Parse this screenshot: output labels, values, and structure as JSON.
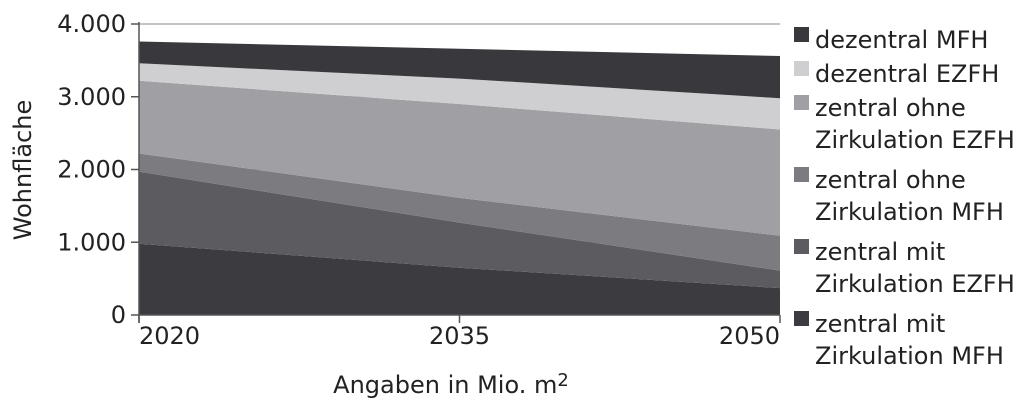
{
  "chart_data": {
    "type": "area",
    "stacked": true,
    "x": [
      "2020",
      "2035",
      "2050"
    ],
    "ylim": [
      0,
      4000
    ],
    "yticks": [
      "0",
      "1.000",
      "2.000",
      "3.000",
      "4.000"
    ],
    "grid": true,
    "legend_position": "right",
    "xlabel": "Angaben in Mio. m²",
    "xlabel_parts": [
      "Angaben in Mio. m",
      "2"
    ],
    "ylabel": "Wohnfläche",
    "series": [
      {
        "name": "zentral mit Zirkulation MFH",
        "label_lines": [
          "zentral mit",
          "Zirkulation MFH"
        ],
        "values": [
          980,
          650,
          370
        ],
        "color": "#3c3b40"
      },
      {
        "name": "zentral mit Zirkulation EZFH",
        "label_lines": [
          "zentral mit",
          "Zirkulation EZFH"
        ],
        "values": [
          990,
          620,
          240
        ],
        "color": "#5c5b60"
      },
      {
        "name": "zentral ohne Zirkulation MFH",
        "label_lines": [
          "zentral ohne",
          "Zirkulation MFH"
        ],
        "values": [
          250,
          340,
          480
        ],
        "color": "#7c7b80"
      },
      {
        "name": "zentral ohne Zirkulation EZFH",
        "label_lines": [
          "zentral ohne",
          "Zirkulation EZFH"
        ],
        "values": [
          1000,
          1290,
          1460
        ],
        "color": "#a09fa4"
      },
      {
        "name": "dezentral EZFH",
        "label_lines": [
          "dezentral EZFH"
        ],
        "values": [
          240,
          350,
          430
        ],
        "color": "#cfcfd1"
      },
      {
        "name": "dezentral MFH",
        "label_lines": [
          "dezentral MFH"
        ],
        "values": [
          300,
          410,
          580
        ],
        "color": "#39383d"
      }
    ],
    "legend_order": [
      5,
      4,
      3,
      2,
      1,
      0
    ]
  }
}
